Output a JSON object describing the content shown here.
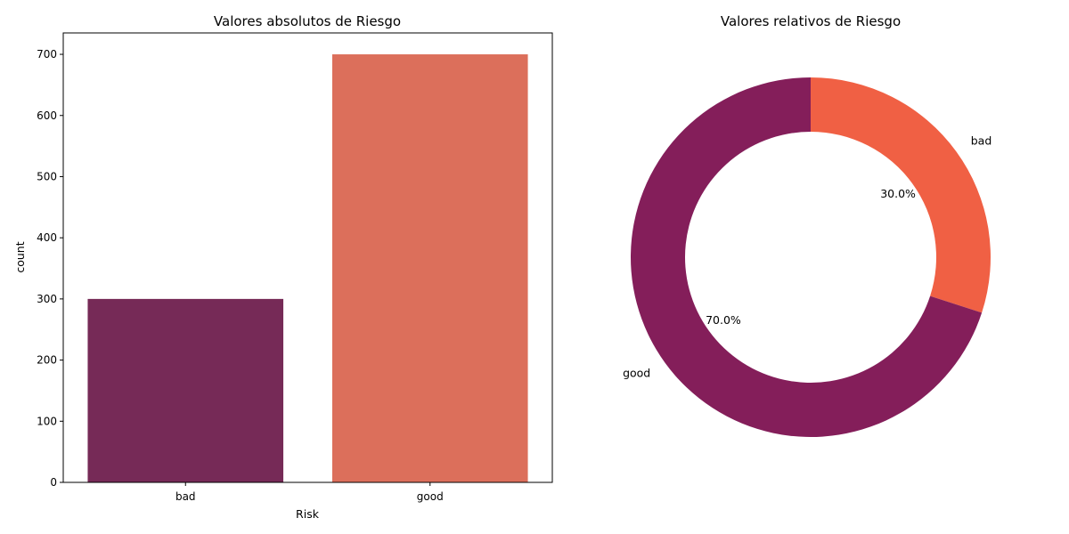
{
  "chart_data": [
    {
      "type": "bar",
      "title": "Valores absolutos de Riesgo",
      "xlabel": "Risk",
      "ylabel": "count",
      "categories": [
        "bad",
        "good"
      ],
      "values": [
        300,
        700
      ],
      "ylim": [
        0,
        735
      ],
      "yticks": [
        0,
        100,
        200,
        300,
        400,
        500,
        600,
        700
      ],
      "colors": [
        "#762a57",
        "#dc6f5b"
      ],
      "grid": false
    },
    {
      "type": "pie",
      "title": "Valores relativos de Riesgo",
      "donut": true,
      "labels": [
        "bad",
        "good"
      ],
      "values": [
        30.0,
        70.0
      ],
      "pct_labels": [
        "30.0%",
        "70.0%"
      ],
      "colors": [
        "#f06044",
        "#841e5a"
      ]
    }
  ]
}
